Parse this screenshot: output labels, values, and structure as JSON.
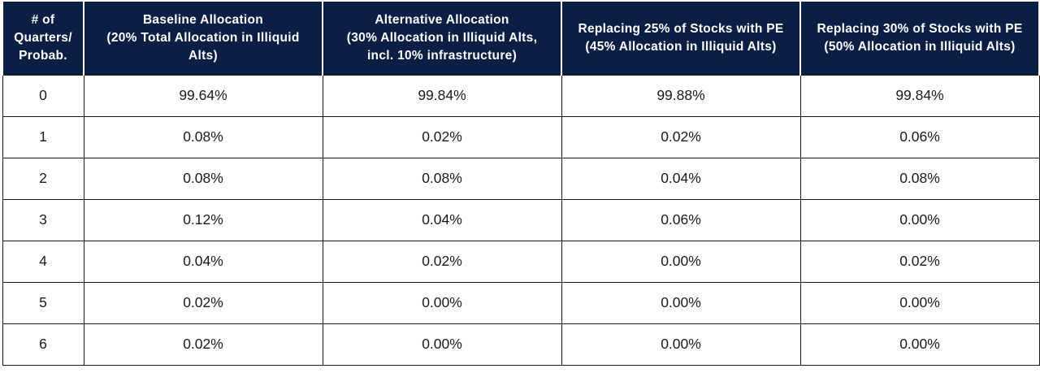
{
  "table": {
    "headers": [
      {
        "lines": [
          "# of",
          "Quarters/",
          "Probab."
        ]
      },
      {
        "lines": [
          "Baseline Allocation",
          "(20% Total Allocation in Illiquid",
          "Alts)"
        ]
      },
      {
        "lines": [
          "Alternative Allocation",
          "(30% Allocation in Illiquid Alts,",
          "incl. 10% infrastructure)"
        ]
      },
      {
        "lines": [
          "Replacing 25% of Stocks with PE",
          "(45% Allocation in Illiquid Alts)"
        ]
      },
      {
        "lines": [
          "Replacing 30% of Stocks with PE",
          "(50% Allocation in Illiquid Alts)"
        ]
      }
    ],
    "rows": [
      [
        "0",
        "99.64%",
        "99.84%",
        "99.88%",
        "99.84%"
      ],
      [
        "1",
        "0.08%",
        "0.02%",
        "0.02%",
        "0.06%"
      ],
      [
        "2",
        "0.08%",
        "0.08%",
        "0.04%",
        "0.08%"
      ],
      [
        "3",
        "0.12%",
        "0.04%",
        "0.06%",
        "0.00%"
      ],
      [
        "4",
        "0.04%",
        "0.02%",
        "0.00%",
        "0.02%"
      ],
      [
        "5",
        "0.02%",
        "0.00%",
        "0.00%",
        "0.00%"
      ],
      [
        "6",
        "0.02%",
        "0.00%",
        "0.00%",
        "0.00%"
      ]
    ]
  },
  "colors": {
    "header_background": "#0b1f45",
    "header_text": "#ffffff",
    "body_text": "#1a1a1a",
    "grid_lines": "#1a1a1a"
  }
}
